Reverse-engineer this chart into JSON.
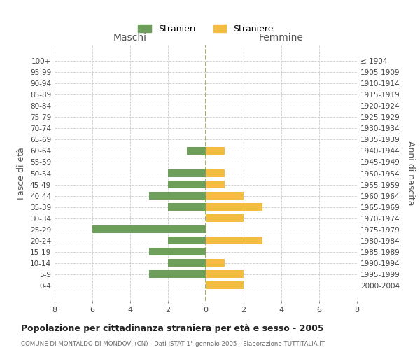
{
  "age_groups": [
    "0-4",
    "5-9",
    "10-14",
    "15-19",
    "20-24",
    "25-29",
    "30-34",
    "35-39",
    "40-44",
    "45-49",
    "50-54",
    "55-59",
    "60-64",
    "65-69",
    "70-74",
    "75-79",
    "80-84",
    "85-89",
    "90-94",
    "95-99",
    "100+"
  ],
  "birth_years": [
    "2000-2004",
    "1995-1999",
    "1990-1994",
    "1985-1989",
    "1980-1984",
    "1975-1979",
    "1970-1974",
    "1965-1969",
    "1960-1964",
    "1955-1959",
    "1950-1954",
    "1945-1949",
    "1940-1944",
    "1935-1939",
    "1930-1934",
    "1925-1929",
    "1920-1924",
    "1915-1919",
    "1910-1914",
    "1905-1909",
    "≤ 1904"
  ],
  "maschi": [
    0,
    3,
    2,
    3,
    2,
    6,
    0,
    2,
    3,
    2,
    2,
    0,
    1,
    0,
    0,
    0,
    0,
    0,
    0,
    0,
    0
  ],
  "femmine": [
    2,
    2,
    1,
    0,
    3,
    0,
    2,
    3,
    2,
    1,
    1,
    0,
    1,
    0,
    0,
    0,
    0,
    0,
    0,
    0,
    0
  ],
  "maschi_color": "#6d9e5a",
  "femmine_color": "#f5bc42",
  "title": "Popolazione per cittadinanza straniera per età e sesso - 2005",
  "subtitle": "COMUNE DI MONTALDO DI MONDOVÌ (CN) - Dati ISTAT 1° gennaio 2005 - Elaborazione TUTTITALIA.IT",
  "ylabel_left": "Fasce di età",
  "ylabel_right": "Anni di nascita",
  "xlabel_maschi": "Maschi",
  "xlabel_femmine": "Femmine",
  "legend_maschi": "Stranieri",
  "legend_femmine": "Straniere",
  "xlim": 8,
  "background_color": "#ffffff",
  "grid_color": "#cccccc",
  "center_line_color": "#999966"
}
